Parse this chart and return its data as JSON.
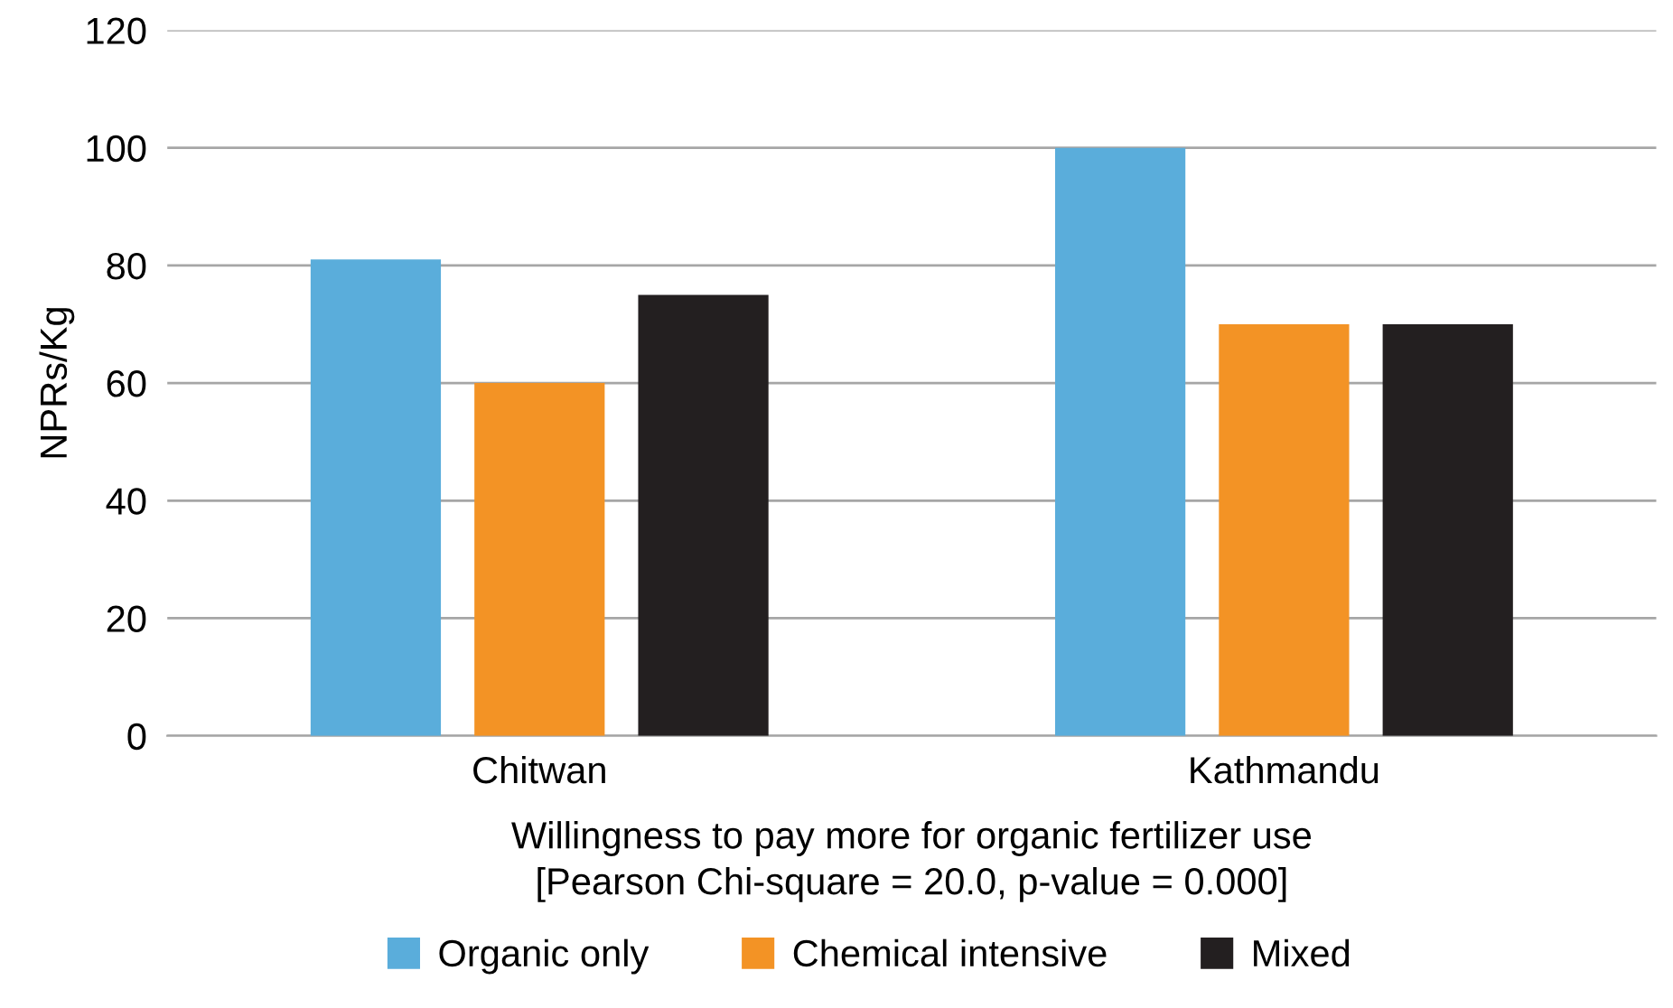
{
  "chart_data": {
    "type": "bar",
    "categories": [
      "Chitwan",
      "Kathmandu"
    ],
    "series": [
      {
        "name": "Organic only",
        "color": "#5aaddb",
        "values": [
          81,
          100
        ]
      },
      {
        "name": "Chemical intensive",
        "color": "#f39325",
        "values": [
          60,
          70
        ]
      },
      {
        "name": "Mixed",
        "color": "#231f20",
        "values": [
          75,
          70
        ]
      }
    ],
    "xlabel": "Willingness to pay more for organic fertilizer use\n[Pearson Chi-square = 20.0, p-value = 0.000]",
    "ylabel": "NPRs/Kg",
    "ylim": [
      0,
      120
    ],
    "yticks": [
      0,
      20,
      40,
      60,
      80,
      100,
      120
    ],
    "grid": "y",
    "legend": "bottom"
  }
}
